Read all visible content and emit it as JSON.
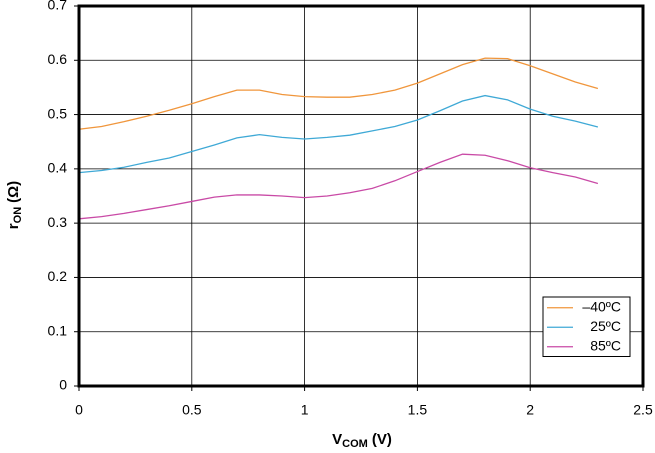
{
  "chart_data": {
    "type": "line",
    "xlabel_parts": [
      "V",
      "COM",
      "(V)"
    ],
    "ylabel_parts": [
      "r",
      "ON",
      "(Ω)"
    ],
    "x": [
      0,
      0.1,
      0.2,
      0.3,
      0.4,
      0.5,
      0.6,
      0.7,
      0.8,
      0.9,
      1.0,
      1.1,
      1.2,
      1.3,
      1.4,
      1.5,
      1.6,
      1.7,
      1.8,
      1.9,
      2.0,
      2.1,
      2.2,
      2.3
    ],
    "series": [
      {
        "name": "–40ºC",
        "color": "#f0963c",
        "values": [
          0.473,
          0.478,
          0.487,
          0.497,
          0.508,
          0.52,
          0.533,
          0.545,
          0.545,
          0.537,
          0.533,
          0.532,
          0.532,
          0.537,
          0.545,
          0.558,
          0.575,
          0.592,
          0.604,
          0.603,
          0.59,
          0.575,
          0.56,
          0.548
        ]
      },
      {
        "name": "25ºC",
        "color": "#3fa9d6",
        "values": [
          0.393,
          0.397,
          0.403,
          0.412,
          0.42,
          0.432,
          0.444,
          0.457,
          0.463,
          0.458,
          0.455,
          0.458,
          0.462,
          0.47,
          0.478,
          0.49,
          0.507,
          0.525,
          0.535,
          0.527,
          0.51,
          0.497,
          0.488,
          0.477
        ]
      },
      {
        "name": "85ºC",
        "color": "#c94aa6",
        "values": [
          0.308,
          0.312,
          0.318,
          0.325,
          0.332,
          0.34,
          0.348,
          0.352,
          0.352,
          0.35,
          0.347,
          0.35,
          0.356,
          0.364,
          0.378,
          0.395,
          0.412,
          0.427,
          0.425,
          0.415,
          0.402,
          0.393,
          0.385,
          0.373
        ]
      }
    ],
    "xlim": [
      0,
      2.5
    ],
    "xticks": [
      0,
      0.5,
      1,
      1.5,
      2,
      2.5
    ],
    "ylim": [
      0,
      0.7
    ],
    "yticks": [
      0,
      0.1,
      0.2,
      0.3,
      0.4,
      0.5,
      0.6,
      0.7
    ],
    "grid": true,
    "legend": "lower-right"
  }
}
